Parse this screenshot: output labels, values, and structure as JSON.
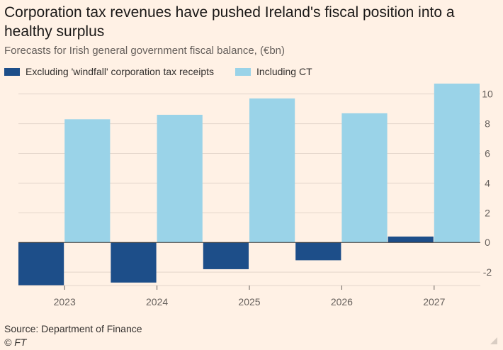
{
  "header": {
    "title": "Corporation tax revenues have pushed Ireland's fiscal position into a healthy surplus",
    "subtitle": "Forecasts for Irish general government fiscal balance, (€bn)"
  },
  "footer": {
    "source": "Source: Department of Finance",
    "copyright": "© FT"
  },
  "colors": {
    "background": "#fff1e5",
    "excluding": "#1d4e89",
    "including": "#9ad3e8",
    "grid": "#e3d5ca",
    "zero_line": "#33302e"
  },
  "chart_data": {
    "type": "bar",
    "title": "Corporation tax revenues have pushed Ireland's fiscal position into a healthy surplus",
    "subtitle": "Forecasts for Irish general government fiscal balance, (€bn)",
    "xlabel": "",
    "ylabel": "",
    "categories": [
      "2023",
      "2024",
      "2025",
      "2026",
      "2027"
    ],
    "series": [
      {
        "name": "Excluding 'windfall' corporation tax receipts",
        "values": [
          -2.9,
          -2.7,
          -1.8,
          -1.2,
          0.4
        ]
      },
      {
        "name": "Including CT",
        "values": [
          8.3,
          8.6,
          9.7,
          8.7,
          10.7
        ]
      }
    ],
    "ylim": [
      -2.9,
      10.7
    ],
    "yticks": [
      -2,
      0,
      2,
      4,
      6,
      8,
      10
    ],
    "ytick_labels": [
      "-2",
      "0",
      "2",
      "4",
      "6",
      "8",
      "10"
    ],
    "grid": true,
    "legend_position": "top-left"
  }
}
